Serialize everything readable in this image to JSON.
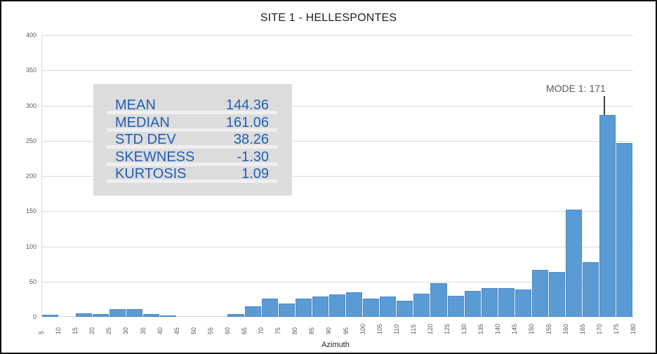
{
  "chart_data": {
    "type": "bar",
    "title": "SITE 1 - HELLESPONTES",
    "xlabel": "Azimuth",
    "ylabel": "",
    "ylim": [
      0,
      400
    ],
    "yticks": [
      0,
      50,
      100,
      150,
      200,
      250,
      300,
      350,
      400
    ],
    "xticks": [
      5,
      10,
      15,
      20,
      25,
      30,
      35,
      40,
      45,
      50,
      55,
      60,
      65,
      70,
      75,
      80,
      85,
      90,
      95,
      100,
      105,
      110,
      115,
      120,
      125,
      130,
      135,
      140,
      145,
      150,
      155,
      160,
      165,
      170,
      175,
      180
    ],
    "grid": "horizontal",
    "legend": "none",
    "bins": [
      [
        5,
        10
      ],
      [
        10,
        15
      ],
      [
        15,
        20
      ],
      [
        20,
        25
      ],
      [
        25,
        30
      ],
      [
        30,
        35
      ],
      [
        35,
        40
      ],
      [
        40,
        45
      ],
      [
        45,
        50
      ],
      [
        50,
        55
      ],
      [
        55,
        60
      ],
      [
        60,
        65
      ],
      [
        65,
        70
      ],
      [
        70,
        75
      ],
      [
        75,
        80
      ],
      [
        80,
        85
      ],
      [
        85,
        90
      ],
      [
        90,
        95
      ],
      [
        95,
        100
      ],
      [
        100,
        105
      ],
      [
        105,
        110
      ],
      [
        110,
        115
      ],
      [
        115,
        120
      ],
      [
        120,
        125
      ],
      [
        125,
        130
      ],
      [
        130,
        135
      ],
      [
        135,
        140
      ],
      [
        140,
        145
      ],
      [
        145,
        150
      ],
      [
        150,
        155
      ],
      [
        155,
        160
      ],
      [
        160,
        165
      ],
      [
        165,
        170
      ],
      [
        170,
        175
      ],
      [
        175,
        180
      ]
    ],
    "values": [
      3,
      0,
      5,
      4,
      11,
      11,
      4,
      1,
      0,
      0,
      0,
      4,
      15,
      26,
      19,
      26,
      29,
      32,
      35,
      26,
      29,
      23,
      33,
      48,
      30,
      37,
      41,
      41,
      39,
      67,
      64,
      152,
      78,
      287,
      247
    ],
    "bar_color": "#5b9bd5",
    "annotations": [
      {
        "text": "MODE 1: 171",
        "x": 171,
        "y": 287
      }
    ],
    "stats": [
      {
        "label": "MEAN",
        "value": "144.36"
      },
      {
        "label": "MEDIAN",
        "value": "161.06"
      },
      {
        "label": "STD DEV",
        "value": "38.26"
      },
      {
        "label": "SKEWNESS",
        "value": "-1.30"
      },
      {
        "label": "KURTOSIS",
        "value": "1.09"
      }
    ]
  },
  "title": "SITE 1 - HELLESPONTES",
  "xlabel": "Azimuth",
  "mode_label": "MODE 1: 171",
  "stats": [
    {
      "label": "MEAN",
      "value": "144.36"
    },
    {
      "label": "MEDIAN",
      "value": "161.06"
    },
    {
      "label": "STD DEV",
      "value": "38.26"
    },
    {
      "label": "SKEWNESS",
      "value": "-1.30"
    },
    {
      "label": "KURTOSIS",
      "value": "1.09"
    }
  ],
  "colors": {
    "bar": "#5b9bd5",
    "stats_text": "#1f5fb5",
    "stats_bg": "#dcdcdc",
    "grid": "#d9d9d9"
  }
}
